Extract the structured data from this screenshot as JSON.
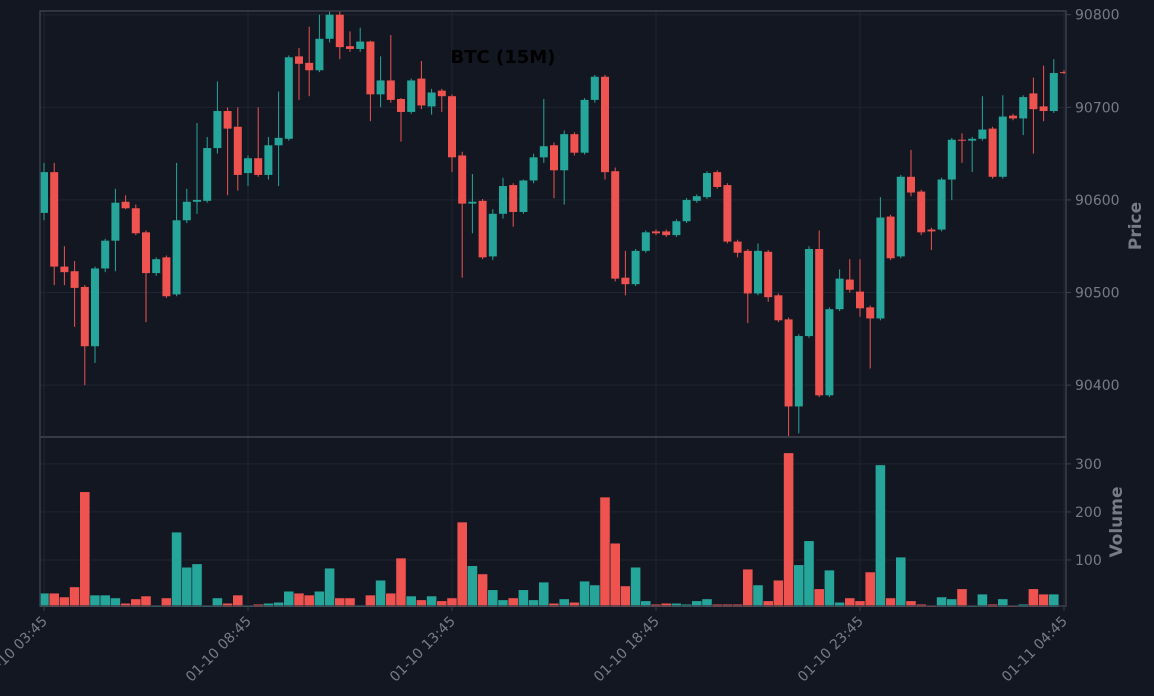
{
  "chart_data": [
    {
      "type": "candlestick",
      "title": "BTC (15M)",
      "ylabel": "Price",
      "up_color": "#26a69a",
      "down_color": "#ef5350",
      "grid": true,
      "categories": [
        "01-10 03:45",
        null,
        null,
        null,
        null,
        null,
        null,
        null,
        null,
        null,
        null,
        null,
        null,
        null,
        null,
        null,
        null,
        null,
        null,
        null,
        "01-10 08:45",
        null,
        null,
        null,
        null,
        null,
        null,
        null,
        null,
        null,
        null,
        null,
        null,
        null,
        null,
        null,
        null,
        null,
        null,
        null,
        "01-10 13:45",
        null,
        null,
        null,
        null,
        null,
        null,
        null,
        null,
        null,
        null,
        null,
        null,
        null,
        null,
        null,
        null,
        null,
        null,
        null,
        "01-10 18:45",
        null,
        null,
        null,
        null,
        null,
        null,
        null,
        null,
        null,
        null,
        null,
        null,
        null,
        null,
        null,
        null,
        null,
        null,
        null,
        "01-10 23:45",
        null,
        null,
        null,
        null,
        null,
        null,
        null,
        null,
        null,
        null,
        null,
        null,
        null,
        null,
        null,
        null,
        null,
        null,
        null,
        "01-11 04:45"
      ],
      "open": [
        90586,
        90630,
        90528,
        90523,
        90506,
        90442,
        90526,
        90556,
        90598,
        90591,
        90565,
        90521,
        90538,
        90498,
        90578,
        90598,
        90599,
        90656,
        90696,
        90679,
        90629,
        90645,
        90627,
        90659,
        90666,
        90755,
        90748,
        90740,
        90774,
        90800,
        90766,
        90763,
        90771,
        90714,
        90729,
        90709,
        90695,
        90731,
        90701,
        90718,
        90712,
        90648,
        90596,
        90599,
        90539,
        90585,
        90616,
        90587,
        90621,
        90646,
        90659,
        90632,
        90671,
        90651,
        90708,
        90733,
        90631,
        90516,
        90509,
        90545,
        90566,
        90566,
        90562,
        90577,
        90599,
        90603,
        90630,
        90616,
        90555,
        90545,
        90499,
        90544,
        90497,
        90471,
        90377,
        90453,
        90547,
        90389,
        90482,
        90514,
        90501,
        90484,
        90472,
        90582,
        90539,
        90625,
        90609,
        90568,
        90568,
        90622,
        90665,
        90664,
        90666,
        90677,
        90625,
        90691,
        90688,
        90715,
        90701,
        90696,
        90738
      ],
      "high": [
        90640,
        90640,
        90550,
        90534,
        90508,
        90528,
        90558,
        90612,
        90605,
        90595,
        90567,
        90538,
        90540,
        90640,
        90612,
        90683,
        90668,
        90728,
        90700,
        90700,
        90648,
        90700,
        90668,
        90717,
        90756,
        90764,
        90787,
        90800,
        90804,
        90804,
        90782,
        90786,
        90772,
        90755,
        90778,
        90710,
        90731,
        90750,
        90720,
        90720,
        90714,
        90652,
        90628,
        90601,
        90590,
        90624,
        90618,
        90622,
        90650,
        90709,
        90662,
        90675,
        90673,
        90710,
        90735,
        90735,
        90635,
        90545,
        90547,
        90567,
        90568,
        90568,
        90579,
        90602,
        90606,
        90631,
        90632,
        90618,
        90557,
        90547,
        90553,
        90546,
        90499,
        90473,
        90455,
        90550,
        90567,
        90484,
        90525,
        90536,
        90536,
        90486,
        90603,
        90584,
        90627,
        90654,
        90611,
        90570,
        90624,
        90667,
        90672,
        90668,
        90712,
        90679,
        90713,
        90693,
        90713,
        90732,
        90745,
        90752,
        90740
      ],
      "low": [
        90578,
        90508,
        90508,
        90463,
        90400,
        90424,
        90522,
        90523,
        90590,
        90562,
        90468,
        90518,
        90494,
        90496,
        90575,
        90585,
        90597,
        90650,
        90605,
        90610,
        90615,
        90625,
        90622,
        90615,
        90664,
        90708,
        90712,
        90738,
        90770,
        90752,
        90760,
        90760,
        90685,
        90700,
        90705,
        90663,
        90693,
        90698,
        90692,
        90695,
        90630,
        90516,
        90564,
        90536,
        90535,
        90580,
        90571,
        90585,
        90618,
        90640,
        90602,
        90595,
        90648,
        90649,
        90705,
        90622,
        90512,
        90497,
        90507,
        90543,
        90562,
        90560,
        90560,
        90575,
        90597,
        90601,
        90612,
        90553,
        90538,
        90467,
        90497,
        90490,
        90468,
        90345,
        90348,
        90451,
        90387,
        90387,
        90480,
        90500,
        90474,
        90418,
        90470,
        90535,
        90537,
        90604,
        90562,
        90546,
        90566,
        90600,
        90640,
        90630,
        90664,
        90623,
        90623,
        90686,
        90670,
        90650,
        90685,
        90694,
        90736
      ],
      "close": [
        90630,
        90528,
        90522,
        90505,
        90442,
        90526,
        90556,
        90597,
        90591,
        90564,
        90521,
        90536,
        90496,
        90578,
        90598,
        90600,
        90656,
        90696,
        90677,
        90627,
        90645,
        90627,
        90659,
        90667,
        90754,
        90747,
        90740,
        90774,
        90800,
        90765,
        90763,
        90771,
        90714,
        90729,
        90708,
        90695,
        90729,
        90702,
        90716,
        90712,
        90646,
        90596,
        90598,
        90538,
        90585,
        90615,
        90587,
        90621,
        90646,
        90658,
        90632,
        90671,
        90651,
        90708,
        90733,
        90630,
        90515,
        90509,
        90545,
        90565,
        90564,
        90562,
        90577,
        90600,
        90604,
        90629,
        90614,
        90555,
        90543,
        90499,
        90545,
        90495,
        90470,
        90377,
        90453,
        90547,
        90389,
        90482,
        90515,
        90503,
        90483,
        90472,
        90581,
        90537,
        90625,
        90608,
        90565,
        90566,
        90622,
        90665,
        90664,
        90666,
        90676,
        90625,
        90690,
        90688,
        90711,
        90698,
        90696,
        90737,
        90737
      ],
      "ylim": [
        90344,
        90804
      ],
      "yticks": [
        90400,
        90500,
        90600,
        90700,
        90800
      ]
    },
    {
      "type": "bar",
      "ylabel": "Volume",
      "grid": true,
      "values": [
        31,
        31,
        23,
        44,
        242,
        27,
        27,
        21,
        10,
        19,
        25,
        6,
        21,
        158,
        85,
        92,
        6,
        21,
        10,
        27,
        6,
        8,
        10,
        12,
        35,
        31,
        27,
        35,
        83,
        21,
        21,
        6,
        27,
        58,
        31,
        104,
        25,
        17,
        25,
        15,
        21,
        179,
        88,
        71,
        38,
        17,
        21,
        38,
        17,
        54,
        10,
        19,
        12,
        56,
        48,
        231,
        135,
        46,
        85,
        15,
        8,
        10,
        10,
        8,
        15,
        19,
        8,
        8,
        8,
        81,
        48,
        15,
        58,
        323,
        90,
        140,
        40,
        79,
        12,
        21,
        15,
        75,
        298,
        21,
        106,
        15,
        8,
        4,
        23,
        19,
        40,
        4,
        29,
        8,
        19,
        6,
        8,
        40,
        29,
        29,
        2
      ],
      "ylim": [
        0,
        356
      ],
      "yticks": [
        100,
        200,
        300
      ]
    }
  ]
}
